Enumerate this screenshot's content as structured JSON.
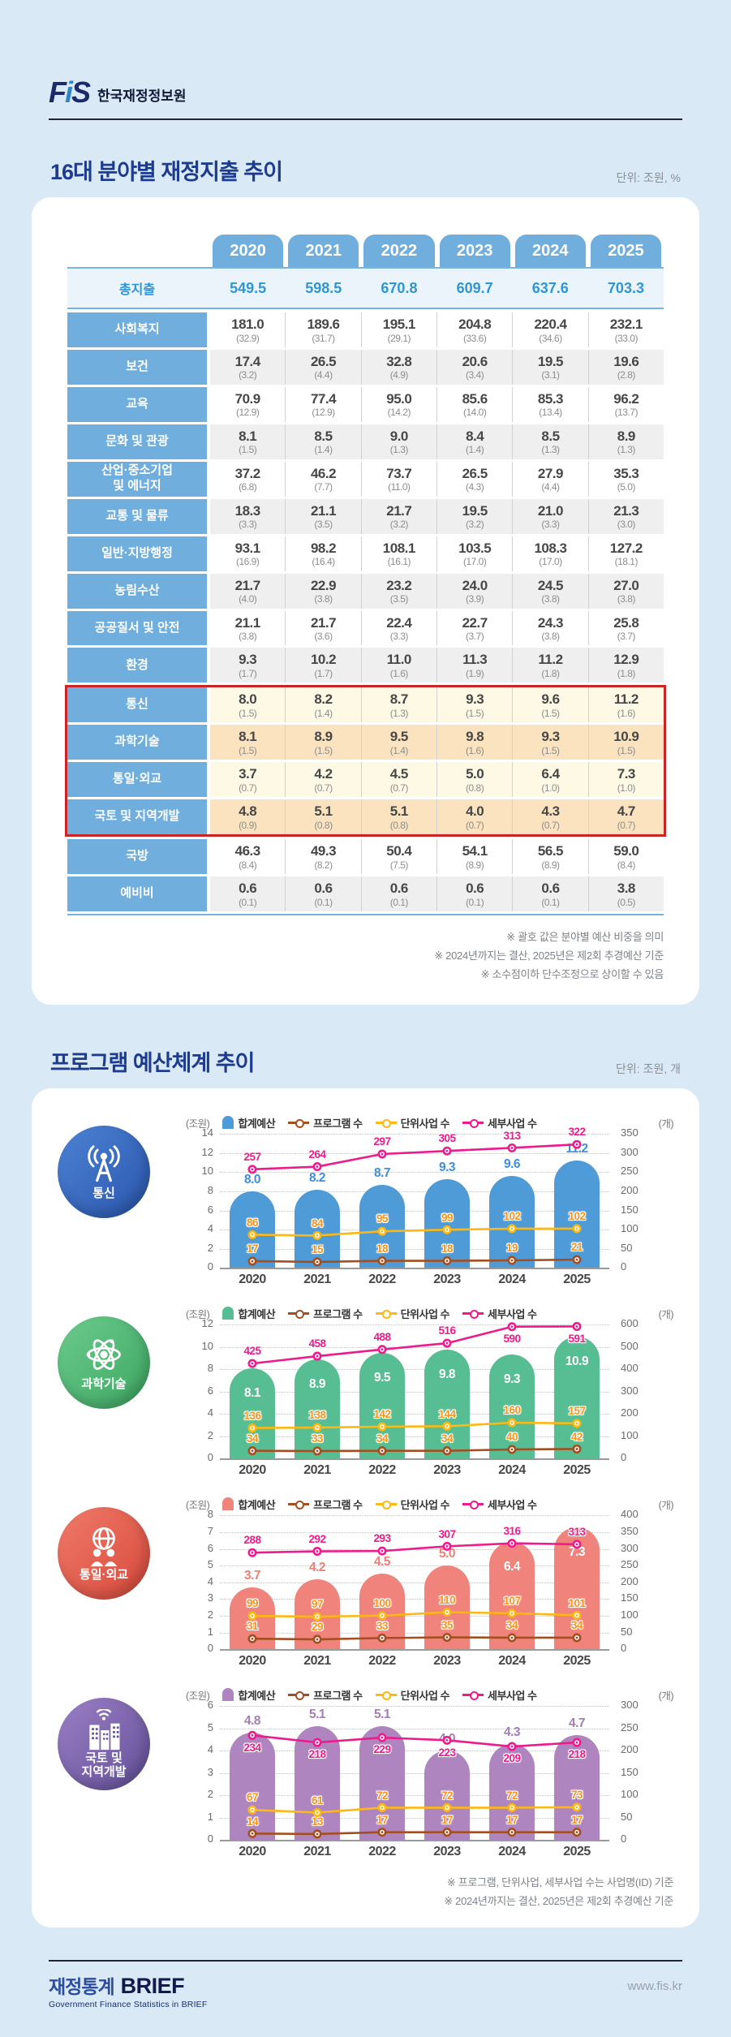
{
  "header": {
    "logo": "FiS",
    "org": "한국재정정보원"
  },
  "section1": {
    "title": "16대 분야별 재정지출 추이",
    "unit": "단위: 조원, %"
  },
  "table": {
    "years": [
      "2020",
      "2021",
      "2022",
      "2023",
      "2024",
      "2025"
    ],
    "total": {
      "label": "총지출",
      "values": [
        "549.5",
        "598.5",
        "670.8",
        "609.7",
        "637.6",
        "703.3"
      ]
    },
    "rows": [
      {
        "label": "사회복지",
        "bg": "white",
        "values": [
          "181.0",
          "189.6",
          "195.1",
          "204.8",
          "220.4",
          "232.1"
        ],
        "shares": [
          "(32.9)",
          "(31.7)",
          "(29.1)",
          "(33.6)",
          "(34.6)",
          "(33.0)"
        ]
      },
      {
        "label": "보건",
        "bg": "gray",
        "values": [
          "17.4",
          "26.5",
          "32.8",
          "20.6",
          "19.5",
          "19.6"
        ],
        "shares": [
          "(3.2)",
          "(4.4)",
          "(4.9)",
          "(3.4)",
          "(3.1)",
          "(2.8)"
        ]
      },
      {
        "label": "교육",
        "bg": "white",
        "values": [
          "70.9",
          "77.4",
          "95.0",
          "85.6",
          "85.3",
          "96.2"
        ],
        "shares": [
          "(12.9)",
          "(12.9)",
          "(14.2)",
          "(14.0)",
          "(13.4)",
          "(13.7)"
        ]
      },
      {
        "label": "문화 및 관광",
        "bg": "gray",
        "values": [
          "8.1",
          "8.5",
          "9.0",
          "8.4",
          "8.5",
          "8.9"
        ],
        "shares": [
          "(1.5)",
          "(1.4)",
          "(1.3)",
          "(1.4)",
          "(1.3)",
          "(1.3)"
        ]
      },
      {
        "label": "산업·중소기업\n및 에너지",
        "bg": "white",
        "values": [
          "37.2",
          "46.2",
          "73.7",
          "26.5",
          "27.9",
          "35.3"
        ],
        "shares": [
          "(6.8)",
          "(7.7)",
          "(11.0)",
          "(4.3)",
          "(4.4)",
          "(5.0)"
        ]
      },
      {
        "label": "교통 및 물류",
        "bg": "gray",
        "values": [
          "18.3",
          "21.1",
          "21.7",
          "19.5",
          "21.0",
          "21.3"
        ],
        "shares": [
          "(3.3)",
          "(3.5)",
          "(3.2)",
          "(3.2)",
          "(3.3)",
          "(3.0)"
        ]
      },
      {
        "label": "일반·지방행정",
        "bg": "white",
        "values": [
          "93.1",
          "98.2",
          "108.1",
          "103.5",
          "108.3",
          "127.2"
        ],
        "shares": [
          "(16.9)",
          "(16.4)",
          "(16.1)",
          "(17.0)",
          "(17.0)",
          "(18.1)"
        ]
      },
      {
        "label": "농림수산",
        "bg": "gray",
        "values": [
          "21.7",
          "22.9",
          "23.2",
          "24.0",
          "24.5",
          "27.0"
        ],
        "shares": [
          "(4.0)",
          "(3.8)",
          "(3.5)",
          "(3.9)",
          "(3.8)",
          "(3.8)"
        ]
      },
      {
        "label": "공공질서 및 안전",
        "bg": "white",
        "values": [
          "21.1",
          "21.7",
          "22.4",
          "22.7",
          "24.3",
          "25.8"
        ],
        "shares": [
          "(3.8)",
          "(3.6)",
          "(3.3)",
          "(3.7)",
          "(3.8)",
          "(3.7)"
        ]
      },
      {
        "label": "환경",
        "bg": "gray",
        "values": [
          "9.3",
          "10.2",
          "11.0",
          "11.3",
          "11.2",
          "12.9"
        ],
        "shares": [
          "(1.7)",
          "(1.7)",
          "(1.6)",
          "(1.9)",
          "(1.8)",
          "(1.8)"
        ]
      },
      {
        "label": "통신",
        "bg": "cream",
        "highlight": true,
        "values": [
          "8.0",
          "8.2",
          "8.7",
          "9.3",
          "9.6",
          "11.2"
        ],
        "shares": [
          "(1.5)",
          "(1.4)",
          "(1.3)",
          "(1.5)",
          "(1.5)",
          "(1.6)"
        ]
      },
      {
        "label": "과학기술",
        "bg": "peach",
        "highlight": true,
        "values": [
          "8.1",
          "8.9",
          "9.5",
          "9.8",
          "9.3",
          "10.9"
        ],
        "shares": [
          "(1.5)",
          "(1.5)",
          "(1.4)",
          "(1.6)",
          "(1.5)",
          "(1.5)"
        ]
      },
      {
        "label": "통일·외교",
        "bg": "cream",
        "highlight": true,
        "values": [
          "3.7",
          "4.2",
          "4.5",
          "5.0",
          "6.4",
          "7.3"
        ],
        "shares": [
          "(0.7)",
          "(0.7)",
          "(0.7)",
          "(0.8)",
          "(1.0)",
          "(1.0)"
        ]
      },
      {
        "label": "국토 및 지역개발",
        "bg": "peach",
        "highlight": true,
        "values": [
          "4.8",
          "5.1",
          "5.1",
          "4.0",
          "4.3",
          "4.7"
        ],
        "shares": [
          "(0.9)",
          "(0.8)",
          "(0.8)",
          "(0.7)",
          "(0.7)",
          "(0.7)"
        ]
      },
      {
        "label": "국방",
        "bg": "white",
        "values": [
          "46.3",
          "49.3",
          "50.4",
          "54.1",
          "56.5",
          "59.0"
        ],
        "shares": [
          "(8.4)",
          "(8.2)",
          "(7.5)",
          "(8.9)",
          "(8.9)",
          "(8.4)"
        ]
      },
      {
        "label": "예비비",
        "bg": "gray",
        "values": [
          "0.6",
          "0.6",
          "0.6",
          "0.6",
          "0.6",
          "3.8"
        ],
        "shares": [
          "(0.1)",
          "(0.1)",
          "(0.1)",
          "(0.1)",
          "(0.1)",
          "(0.5)"
        ]
      }
    ],
    "footnotes": [
      "※ 괄호 값은 분야별 예산 비중을 의미",
      "※ 2024년까지는 결산, 2025년은 제2회 추경예산 기준",
      "※ 소수점이하 단수조정으로 상이할 수 있음"
    ]
  },
  "section2": {
    "title": "프로그램 예산체계 추이",
    "unit": "단위: 조원, 개",
    "legend": {
      "left_unit": "(조원)",
      "budget": "합계예산",
      "program": "프로그램 수",
      "unit_biz": "단위사업 수",
      "detail_biz": "세부사업 수",
      "right_unit": "(개)"
    },
    "footnotes": [
      "※ 프로그램, 단위사업, 세부사업 수는 사업명(ID) 기준",
      "※ 2024년까지는 결산, 2025년은 제2회 추경예산 기준"
    ]
  },
  "line_colors": {
    "program": "#a34f21",
    "unit_biz": "#fdb813",
    "detail_biz": "#ec1c8d",
    "count_label": "#f7941d",
    "detail_label": "#ec1c8d"
  },
  "chart_data": [
    {
      "type": "bar",
      "name": "통신",
      "icon": "broadcast-icon",
      "categories": [
        "2020",
        "2021",
        "2022",
        "2023",
        "2024",
        "2025"
      ],
      "bar_series": {
        "name": "합계예산",
        "values": [
          8.0,
          8.2,
          8.7,
          9.3,
          9.6,
          11.2
        ]
      },
      "line_series": [
        {
          "name": "프로그램 수",
          "key": "program",
          "values": [
            17,
            15,
            18,
            18,
            19,
            21
          ]
        },
        {
          "name": "단위사업 수",
          "key": "unit_biz",
          "values": [
            86,
            84,
            95,
            99,
            102,
            102
          ]
        },
        {
          "name": "세부사업 수",
          "key": "detail_biz",
          "values": [
            257,
            264,
            297,
            305,
            313,
            322
          ]
        }
      ],
      "left_axis": {
        "min": 0,
        "max": 14,
        "step": 2
      },
      "right_axis": {
        "min": 0,
        "max": 350,
        "step": 50
      },
      "style": {
        "bar": "#4e9bd8",
        "bar_label": "#3e8ede",
        "icon_a": "#4c82d4",
        "icon_b": "#2b57ae",
        "inside": [
          false,
          false,
          false,
          false,
          false,
          false
        ]
      }
    },
    {
      "type": "bar",
      "name": "과학기술",
      "icon": "atom-icon",
      "categories": [
        "2020",
        "2021",
        "2022",
        "2023",
        "2024",
        "2025"
      ],
      "bar_series": {
        "name": "합계예산",
        "values": [
          8.1,
          8.9,
          9.5,
          9.8,
          9.3,
          10.9
        ]
      },
      "line_series": [
        {
          "name": "프로그램 수",
          "key": "program",
          "values": [
            34,
            33,
            34,
            34,
            40,
            42
          ]
        },
        {
          "name": "단위사업 수",
          "key": "unit_biz",
          "values": [
            136,
            138,
            142,
            144,
            160,
            157
          ]
        },
        {
          "name": "세부사업 수",
          "key": "detail_biz",
          "values": [
            425,
            458,
            488,
            516,
            590,
            591
          ]
        }
      ],
      "left_axis": {
        "min": 0,
        "max": 12,
        "step": 2
      },
      "right_axis": {
        "min": 0,
        "max": 600,
        "step": 100
      },
      "style": {
        "bar": "#57bd93",
        "bar_label": "#ffffff",
        "icon_a": "#6cca8d",
        "icon_b": "#3ea863",
        "inside": [
          true,
          true,
          true,
          true,
          true,
          true
        ]
      }
    },
    {
      "type": "bar",
      "name": "통일·외교",
      "icon": "globe-people-icon",
      "categories": [
        "2020",
        "2021",
        "2022",
        "2023",
        "2024",
        "2025"
      ],
      "bar_series": {
        "name": "합계예산",
        "values": [
          3.7,
          4.2,
          4.5,
          5.0,
          6.4,
          7.3
        ]
      },
      "line_series": [
        {
          "name": "프로그램 수",
          "key": "program",
          "values": [
            31,
            29,
            33,
            35,
            34,
            34
          ]
        },
        {
          "name": "단위사업 수",
          "key": "unit_biz",
          "values": [
            99,
            97,
            100,
            110,
            107,
            101
          ]
        },
        {
          "name": "세부사업 수",
          "key": "detail_biz",
          "values": [
            288,
            292,
            293,
            307,
            316,
            313
          ]
        }
      ],
      "left_axis": {
        "min": 0,
        "max": 8,
        "step": 1
      },
      "right_axis": {
        "min": 0,
        "max": 400,
        "step": 50
      },
      "style": {
        "bar": "#f0837b",
        "bar_label": "#ee7f75",
        "icon_a": "#ef7a68",
        "icon_b": "#d94a3d",
        "inside": [
          false,
          false,
          false,
          false,
          true,
          true
        ]
      }
    },
    {
      "type": "bar",
      "name": "국토 및\n지역개발",
      "icon": "city-wifi-icon",
      "categories": [
        "2020",
        "2021",
        "2022",
        "2023",
        "2024",
        "2025"
      ],
      "bar_series": {
        "name": "합계예산",
        "values": [
          4.8,
          5.1,
          5.1,
          4.0,
          4.3,
          4.7
        ]
      },
      "line_series": [
        {
          "name": "프로그램 수",
          "key": "program",
          "values": [
            14,
            13,
            17,
            17,
            17,
            17
          ]
        },
        {
          "name": "단위사업 수",
          "key": "unit_biz",
          "values": [
            67,
            61,
            72,
            72,
            72,
            73
          ]
        },
        {
          "name": "세부사업 수",
          "key": "detail_biz",
          "values": [
            234,
            218,
            229,
            223,
            209,
            218
          ]
        }
      ],
      "left_axis": {
        "min": 0,
        "max": 6,
        "step": 1
      },
      "right_axis": {
        "min": 0,
        "max": 300,
        "step": 50
      },
      "style": {
        "bar": "#ae85be",
        "bar_label": "#a57fb2",
        "icon_a": "#9b7fc4",
        "icon_b": "#64519b",
        "inside": [
          false,
          false,
          false,
          false,
          false,
          false
        ],
        "pink_below": true
      }
    }
  ],
  "footer": {
    "kor": "재정통계",
    "brief": "BRIEF",
    "sub": "Government Finance Statistics in BRIEF",
    "url": "www.fis.kr"
  }
}
